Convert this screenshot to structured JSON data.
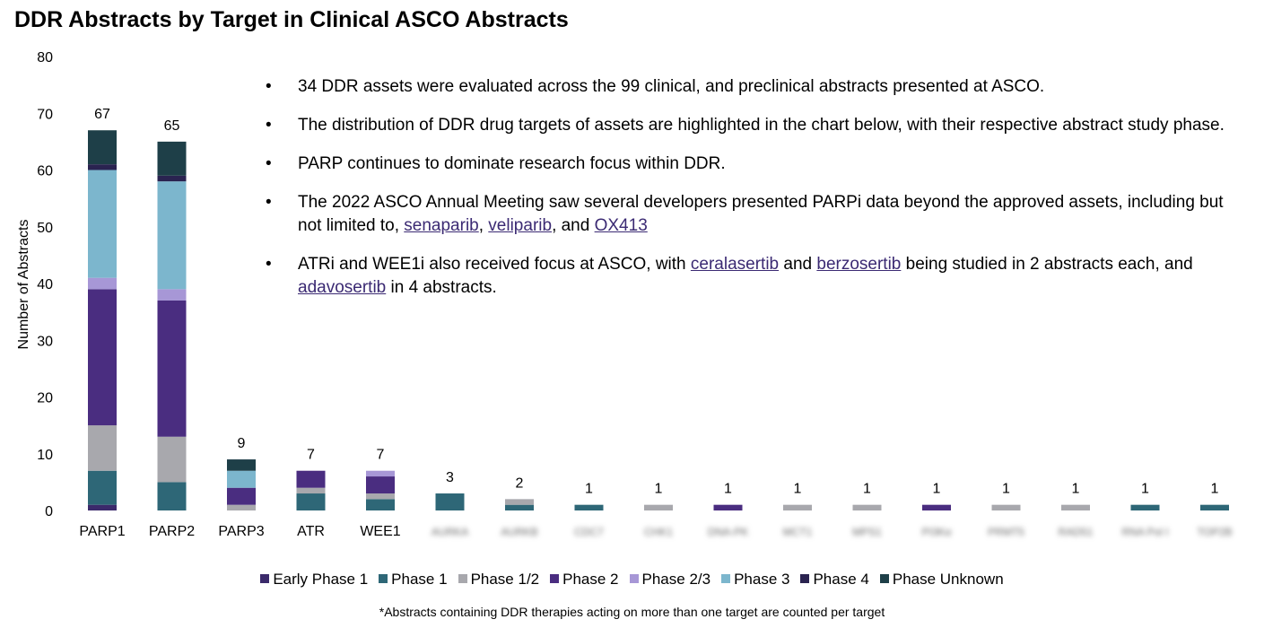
{
  "title": "DDR Abstracts by Target in Clinical ASCO Abstracts",
  "footnote": "*Abstracts containing DDR therapies acting on more than one target are counted per target",
  "bullets": [
    [
      {
        "t": "34 DDR assets were evaluated across the 99 clinical, and preclinical abstracts presented at ASCO."
      }
    ],
    [
      {
        "t": "The distribution of DDR drug targets of assets are highlighted in the chart below, with their respective abstract study phase."
      }
    ],
    [
      {
        "t": "PARP continues to dominate research focus within DDR."
      }
    ],
    [
      {
        "t": "The 2022 ASCO Annual Meeting saw several developers presented PARPi data beyond the approved assets, including but not limited to, "
      },
      {
        "t": "senaparib",
        "link": true
      },
      {
        "t": ", "
      },
      {
        "t": "veliparib",
        "link": true
      },
      {
        "t": ", and "
      },
      {
        "t": "OX413",
        "link": true
      }
    ],
    [
      {
        "t": "ATRi and WEE1i also received focus at ASCO, with "
      },
      {
        "t": "ceralasertib",
        "link": true
      },
      {
        "t": " and "
      },
      {
        "t": "berzosertib",
        "link": true
      },
      {
        "t": " being studied in 2 abstracts each, and "
      },
      {
        "t": "adavosertib",
        "link": true
      },
      {
        "t": " in 4 abstracts."
      }
    ]
  ],
  "bullet_symbol": "•",
  "chart_data": {
    "type": "bar",
    "stacked": true,
    "ylabel": "Number of Abstracts",
    "ylim": [
      0,
      80
    ],
    "yticks": [
      0,
      10,
      20,
      30,
      40,
      50,
      60,
      70,
      80
    ],
    "categories": [
      "PARP1",
      "PARP2",
      "PARP3",
      "ATR",
      "WEE1",
      "AURKA",
      "AURKB",
      "CDC7",
      "CHK1",
      "DNA-PK",
      "MCT1",
      "MPS1",
      "PI3Kα",
      "PRMT5",
      "RAD51",
      "RNA Pol I",
      "TOP2B"
    ],
    "blurred_categories": [
      5,
      6,
      7,
      8,
      9,
      10,
      11,
      12,
      13,
      14,
      15,
      16
    ],
    "totals": [
      67,
      65,
      9,
      7,
      7,
      3,
      2,
      1,
      1,
      1,
      1,
      1,
      1,
      1,
      1,
      1,
      1
    ],
    "legend_position": "bottom",
    "grid": false,
    "series": [
      {
        "name": "Early Phase 1",
        "color": "#3b2a6b",
        "values": [
          1,
          0,
          0,
          0,
          0,
          0,
          0,
          0,
          0,
          0,
          0,
          0,
          0,
          0,
          0,
          0,
          0
        ]
      },
      {
        "name": "Phase 1",
        "color": "#2e6777",
        "values": [
          6,
          5,
          0,
          3,
          2,
          3,
          1,
          1,
          0,
          0,
          0,
          0,
          0,
          0,
          0,
          1,
          1
        ]
      },
      {
        "name": "Phase 1/2",
        "color": "#a8a8ad",
        "values": [
          8,
          8,
          1,
          1,
          1,
          0,
          1,
          0,
          1,
          0,
          1,
          1,
          0,
          1,
          1,
          0,
          0
        ]
      },
      {
        "name": "Phase 2",
        "color": "#4a2d80",
        "values": [
          24,
          24,
          3,
          3,
          3,
          0,
          0,
          0,
          0,
          1,
          0,
          0,
          1,
          0,
          0,
          0,
          0
        ]
      },
      {
        "name": "Phase 2/3",
        "color": "#a797d6",
        "values": [
          2,
          2,
          0,
          0,
          1,
          0,
          0,
          0,
          0,
          0,
          0,
          0,
          0,
          0,
          0,
          0,
          0
        ]
      },
      {
        "name": "Phase 3",
        "color": "#7cb6cd",
        "values": [
          19,
          19,
          3,
          0,
          0,
          0,
          0,
          0,
          0,
          0,
          0,
          0,
          0,
          0,
          0,
          0,
          0
        ]
      },
      {
        "name": "Phase 4",
        "color": "#2a2350",
        "values": [
          1,
          1,
          0,
          0,
          0,
          0,
          0,
          0,
          0,
          0,
          0,
          0,
          0,
          0,
          0,
          0,
          0
        ]
      },
      {
        "name": "Phase Unknown",
        "color": "#1e3f48",
        "values": [
          6,
          6,
          2,
          0,
          0,
          0,
          0,
          0,
          0,
          0,
          0,
          0,
          0,
          0,
          0,
          0,
          0
        ]
      }
    ]
  }
}
